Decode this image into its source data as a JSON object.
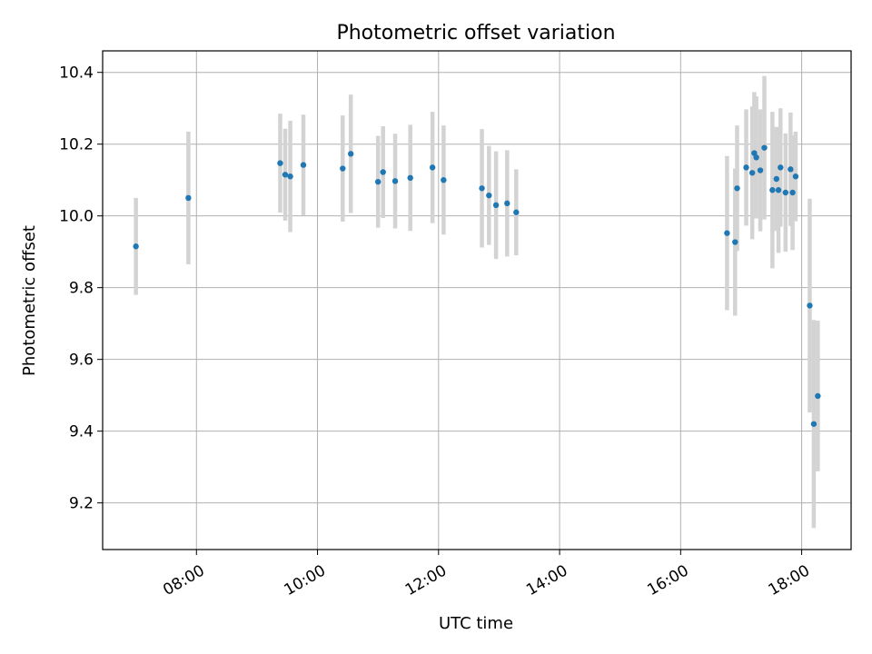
{
  "chart_data": {
    "type": "scatter",
    "title": "Photometric offset variation",
    "xlabel": "UTC time",
    "ylabel": "Photometric offset",
    "x_axis_kind": "time",
    "xlim": [
      "06:27",
      "18:49"
    ],
    "ylim": [
      9.07,
      10.46
    ],
    "x_ticks": [
      "08:00",
      "10:00",
      "12:00",
      "14:00",
      "16:00",
      "18:00"
    ],
    "y_ticks": [
      9.2,
      9.4,
      9.6,
      9.8,
      10.0,
      10.2,
      10.4
    ],
    "grid": true,
    "point_color": "#1f77b4",
    "errorbar_color": "#d3d3d3",
    "points": [
      {
        "x": "07:00",
        "y": 9.915,
        "err": 0.135
      },
      {
        "x": "07:52",
        "y": 10.05,
        "err": 0.185
      },
      {
        "x": "09:23",
        "y": 10.147,
        "err": 0.138
      },
      {
        "x": "09:28",
        "y": 10.115,
        "err": 0.128
      },
      {
        "x": "09:33",
        "y": 10.11,
        "err": 0.155
      },
      {
        "x": "09:46",
        "y": 10.142,
        "err": 0.14
      },
      {
        "x": "10:25",
        "y": 10.132,
        "err": 0.148
      },
      {
        "x": "10:33",
        "y": 10.173,
        "err": 0.165
      },
      {
        "x": "11:00",
        "y": 10.095,
        "err": 0.128
      },
      {
        "x": "11:05",
        "y": 10.122,
        "err": 0.128
      },
      {
        "x": "11:17",
        "y": 10.097,
        "err": 0.132
      },
      {
        "x": "11:32",
        "y": 10.106,
        "err": 0.148
      },
      {
        "x": "11:54",
        "y": 10.135,
        "err": 0.155
      },
      {
        "x": "12:05",
        "y": 10.1,
        "err": 0.152
      },
      {
        "x": "12:43",
        "y": 10.077,
        "err": 0.165
      },
      {
        "x": "12:50",
        "y": 10.057,
        "err": 0.138
      },
      {
        "x": "12:57",
        "y": 10.03,
        "err": 0.15
      },
      {
        "x": "13:08",
        "y": 10.035,
        "err": 0.148
      },
      {
        "x": "13:17",
        "y": 10.01,
        "err": 0.12
      },
      {
        "x": "16:46",
        "y": 9.952,
        "err": 0.215
      },
      {
        "x": "16:54",
        "y": 9.927,
        "err": 0.205
      },
      {
        "x": "16:56",
        "y": 10.077,
        "err": 0.175
      },
      {
        "x": "17:05",
        "y": 10.135,
        "err": 0.162
      },
      {
        "x": "17:11",
        "y": 10.12,
        "err": 0.185
      },
      {
        "x": "17:13",
        "y": 10.175,
        "err": 0.17
      },
      {
        "x": "17:15",
        "y": 10.163,
        "err": 0.17
      },
      {
        "x": "17:19",
        "y": 10.127,
        "err": 0.17
      },
      {
        "x": "17:23",
        "y": 10.19,
        "err": 0.2
      },
      {
        "x": "17:31",
        "y": 10.072,
        "err": 0.218
      },
      {
        "x": "17:35",
        "y": 10.103,
        "err": 0.145
      },
      {
        "x": "17:37",
        "y": 10.072,
        "err": 0.175
      },
      {
        "x": "17:39",
        "y": 10.135,
        "err": 0.165
      },
      {
        "x": "17:44",
        "y": 10.065,
        "err": 0.165
      },
      {
        "x": "17:49",
        "y": 10.13,
        "err": 0.158
      },
      {
        "x": "17:51",
        "y": 10.065,
        "err": 0.16
      },
      {
        "x": "17:54",
        "y": 10.11,
        "err": 0.125
      },
      {
        "x": "18:08",
        "y": 9.75,
        "err": 0.298
      },
      {
        "x": "18:12",
        "y": 9.42,
        "err": 0.29
      },
      {
        "x": "18:16",
        "y": 9.498,
        "err": 0.21
      }
    ]
  }
}
